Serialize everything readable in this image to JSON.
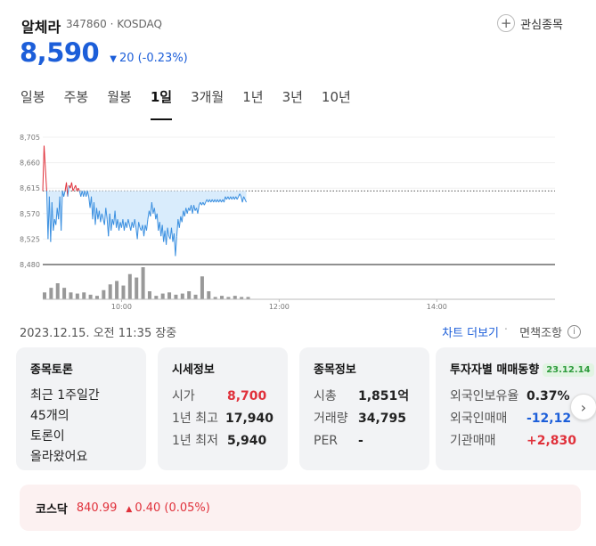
{
  "header": {
    "name": "알체라",
    "code_market": "347860 · KOSDAQ",
    "watch_label": "관심종목",
    "plus_icon": "+"
  },
  "quote": {
    "price": "8,590",
    "change_icon": "▼",
    "change": "20 (-0.23%)"
  },
  "tabs": [
    {
      "label": "일봉"
    },
    {
      "label": "주봉"
    },
    {
      "label": "월봉"
    },
    {
      "label": "1일",
      "active": true
    },
    {
      "label": "3개월"
    },
    {
      "label": "1년"
    },
    {
      "label": "3년"
    },
    {
      "label": "10년"
    }
  ],
  "chart_data": {
    "type": "line",
    "y_ticks": [
      "8,705",
      "8,660",
      "8,615",
      "8,570",
      "8,525",
      "8,480"
    ],
    "x_ticks": [
      "10:00",
      "12:00",
      "14:00"
    ],
    "ylim": [
      8480,
      8705
    ],
    "reference_price": 8610,
    "colors": {
      "up": "#e0313b",
      "down": "#3a8fe0",
      "fill": "#d9ecfc",
      "volume": "#999999"
    },
    "price_series": [
      {
        "t": "09:00",
        "v": 8610
      },
      {
        "t": "09:01",
        "v": 8690
      },
      {
        "t": "09:02",
        "v": 8650
      },
      {
        "t": "09:03",
        "v": 8610
      },
      {
        "t": "09:04",
        "v": 8525
      },
      {
        "t": "09:05",
        "v": 8600
      },
      {
        "t": "09:06",
        "v": 8520
      },
      {
        "t": "09:07",
        "v": 8590
      },
      {
        "t": "09:08",
        "v": 8540
      },
      {
        "t": "09:09",
        "v": 8560
      },
      {
        "t": "09:10",
        "v": 8550
      },
      {
        "t": "09:11",
        "v": 8580
      },
      {
        "t": "09:12",
        "v": 8560
      },
      {
        "t": "09:13",
        "v": 8600
      },
      {
        "t": "09:14",
        "v": 8540
      },
      {
        "t": "09:15",
        "v": 8610
      },
      {
        "t": "09:16",
        "v": 8600
      },
      {
        "t": "09:17",
        "v": 8610
      },
      {
        "t": "09:18",
        "v": 8625
      },
      {
        "t": "09:19",
        "v": 8600
      },
      {
        "t": "09:20",
        "v": 8620
      },
      {
        "t": "09:21",
        "v": 8615
      },
      {
        "t": "09:22",
        "v": 8625
      },
      {
        "t": "09:23",
        "v": 8610
      },
      {
        "t": "09:24",
        "v": 8615
      },
      {
        "t": "09:25",
        "v": 8620
      },
      {
        "t": "09:26",
        "v": 8610
      },
      {
        "t": "09:27",
        "v": 8615
      },
      {
        "t": "09:28",
        "v": 8610
      },
      {
        "t": "09:29",
        "v": 8600
      },
      {
        "t": "09:30",
        "v": 8610
      },
      {
        "t": "09:31",
        "v": 8600
      },
      {
        "t": "09:32",
        "v": 8610
      },
      {
        "t": "09:33",
        "v": 8600
      },
      {
        "t": "09:34",
        "v": 8610
      },
      {
        "t": "09:35",
        "v": 8600
      },
      {
        "t": "09:36",
        "v": 8580
      },
      {
        "t": "09:37",
        "v": 8600
      },
      {
        "t": "09:38",
        "v": 8560
      },
      {
        "t": "09:39",
        "v": 8590
      },
      {
        "t": "09:40",
        "v": 8550
      },
      {
        "t": "09:41",
        "v": 8580
      },
      {
        "t": "09:42",
        "v": 8560
      },
      {
        "t": "09:43",
        "v": 8575
      },
      {
        "t": "09:44",
        "v": 8555
      },
      {
        "t": "09:45",
        "v": 8570
      },
      {
        "t": "09:46",
        "v": 8560
      },
      {
        "t": "09:47",
        "v": 8550
      },
      {
        "t": "09:48",
        "v": 8580
      },
      {
        "t": "09:49",
        "v": 8560
      },
      {
        "t": "09:50",
        "v": 8530
      },
      {
        "t": "09:51",
        "v": 8570
      },
      {
        "t": "09:52",
        "v": 8540
      },
      {
        "t": "09:53",
        "v": 8560
      },
      {
        "t": "09:54",
        "v": 8550
      },
      {
        "t": "09:55",
        "v": 8575
      },
      {
        "t": "09:56",
        "v": 8545
      },
      {
        "t": "09:57",
        "v": 8560
      },
      {
        "t": "09:58",
        "v": 8540
      },
      {
        "t": "09:59",
        "v": 8555
      },
      {
        "t": "10:00",
        "v": 8545
      },
      {
        "t": "10:01",
        "v": 8560
      },
      {
        "t": "10:02",
        "v": 8540
      },
      {
        "t": "10:03",
        "v": 8555
      },
      {
        "t": "10:04",
        "v": 8545
      },
      {
        "t": "10:05",
        "v": 8560
      },
      {
        "t": "10:06",
        "v": 8550
      },
      {
        "t": "10:07",
        "v": 8540
      },
      {
        "t": "10:08",
        "v": 8555
      },
      {
        "t": "10:09",
        "v": 8545
      },
      {
        "t": "10:10",
        "v": 8560
      },
      {
        "t": "10:11",
        "v": 8545
      },
      {
        "t": "10:12",
        "v": 8525
      },
      {
        "t": "10:13",
        "v": 8555
      },
      {
        "t": "10:14",
        "v": 8545
      },
      {
        "t": "10:15",
        "v": 8540
      },
      {
        "t": "10:16",
        "v": 8550
      },
      {
        "t": "10:17",
        "v": 8530
      },
      {
        "t": "10:18",
        "v": 8550
      },
      {
        "t": "10:19",
        "v": 8540
      },
      {
        "t": "10:20",
        "v": 8560
      },
      {
        "t": "10:21",
        "v": 8575
      },
      {
        "t": "10:22",
        "v": 8565
      },
      {
        "t": "10:23",
        "v": 8590
      },
      {
        "t": "10:24",
        "v": 8570
      },
      {
        "t": "10:25",
        "v": 8580
      },
      {
        "t": "10:26",
        "v": 8560
      },
      {
        "t": "10:27",
        "v": 8570
      },
      {
        "t": "10:28",
        "v": 8540
      },
      {
        "t": "10:29",
        "v": 8555
      },
      {
        "t": "10:30",
        "v": 8530
      },
      {
        "t": "10:31",
        "v": 8550
      },
      {
        "t": "10:32",
        "v": 8520
      },
      {
        "t": "10:33",
        "v": 8540
      },
      {
        "t": "10:34",
        "v": 8515
      },
      {
        "t": "10:35",
        "v": 8545
      },
      {
        "t": "10:36",
        "v": 8530
      },
      {
        "t": "10:37",
        "v": 8525
      },
      {
        "t": "10:38",
        "v": 8545
      },
      {
        "t": "10:39",
        "v": 8520
      },
      {
        "t": "10:40",
        "v": 8535
      },
      {
        "t": "10:41",
        "v": 8495
      },
      {
        "t": "10:42",
        "v": 8530
      },
      {
        "t": "10:43",
        "v": 8560
      },
      {
        "t": "10:44",
        "v": 8545
      },
      {
        "t": "10:45",
        "v": 8565
      },
      {
        "t": "10:46",
        "v": 8555
      },
      {
        "t": "10:47",
        "v": 8575
      },
      {
        "t": "10:48",
        "v": 8565
      },
      {
        "t": "10:49",
        "v": 8580
      },
      {
        "t": "10:50",
        "v": 8570
      },
      {
        "t": "10:51",
        "v": 8580
      },
      {
        "t": "10:52",
        "v": 8575
      },
      {
        "t": "10:53",
        "v": 8585
      },
      {
        "t": "10:54",
        "v": 8570
      },
      {
        "t": "10:55",
        "v": 8585
      },
      {
        "t": "10:56",
        "v": 8575
      },
      {
        "t": "10:57",
        "v": 8580
      },
      {
        "t": "10:58",
        "v": 8570
      },
      {
        "t": "10:59",
        "v": 8585
      },
      {
        "t": "11:00",
        "v": 8590
      },
      {
        "t": "11:01",
        "v": 8585
      },
      {
        "t": "11:02",
        "v": 8590
      },
      {
        "t": "11:03",
        "v": 8585
      },
      {
        "t": "11:04",
        "v": 8590
      },
      {
        "t": "11:05",
        "v": 8595
      },
      {
        "t": "11:06",
        "v": 8590
      },
      {
        "t": "11:07",
        "v": 8595
      },
      {
        "t": "11:08",
        "v": 8590
      },
      {
        "t": "11:09",
        "v": 8595
      },
      {
        "t": "11:10",
        "v": 8590
      },
      {
        "t": "11:11",
        "v": 8595
      },
      {
        "t": "11:12",
        "v": 8590
      },
      {
        "t": "11:13",
        "v": 8595
      },
      {
        "t": "11:14",
        "v": 8590
      },
      {
        "t": "11:15",
        "v": 8595
      },
      {
        "t": "11:16",
        "v": 8590
      },
      {
        "t": "11:17",
        "v": 8595
      },
      {
        "t": "11:18",
        "v": 8590
      },
      {
        "t": "11:19",
        "v": 8600
      },
      {
        "t": "11:20",
        "v": 8595
      },
      {
        "t": "11:21",
        "v": 8600
      },
      {
        "t": "11:22",
        "v": 8595
      },
      {
        "t": "11:23",
        "v": 8600
      },
      {
        "t": "11:24",
        "v": 8595
      },
      {
        "t": "11:25",
        "v": 8600
      },
      {
        "t": "11:26",
        "v": 8595
      },
      {
        "t": "11:27",
        "v": 8600
      },
      {
        "t": "11:28",
        "v": 8595
      },
      {
        "t": "11:29",
        "v": 8600
      },
      {
        "t": "11:30",
        "v": 8605
      },
      {
        "t": "11:31",
        "v": 8600
      },
      {
        "t": "11:32",
        "v": 8590
      },
      {
        "t": "11:33",
        "v": 8600
      },
      {
        "t": "11:34",
        "v": 8595
      },
      {
        "t": "11:35",
        "v": 8590
      }
    ],
    "volume_series": [
      {
        "t": "09:00",
        "v": 6
      },
      {
        "t": "09:05",
        "v": 10
      },
      {
        "t": "09:10",
        "v": 14
      },
      {
        "t": "09:15",
        "v": 10
      },
      {
        "t": "09:20",
        "v": 6
      },
      {
        "t": "09:25",
        "v": 5
      },
      {
        "t": "09:30",
        "v": 6
      },
      {
        "t": "09:35",
        "v": 4
      },
      {
        "t": "09:40",
        "v": 3
      },
      {
        "t": "09:45",
        "v": 8
      },
      {
        "t": "09:50",
        "v": 13
      },
      {
        "t": "09:55",
        "v": 16
      },
      {
        "t": "10:00",
        "v": 12
      },
      {
        "t": "10:05",
        "v": 22
      },
      {
        "t": "10:10",
        "v": 19
      },
      {
        "t": "10:15",
        "v": 28
      },
      {
        "t": "10:20",
        "v": 7
      },
      {
        "t": "10:25",
        "v": 3
      },
      {
        "t": "10:30",
        "v": 5
      },
      {
        "t": "10:35",
        "v": 6
      },
      {
        "t": "10:40",
        "v": 4
      },
      {
        "t": "10:45",
        "v": 5
      },
      {
        "t": "10:50",
        "v": 7
      },
      {
        "t": "10:55",
        "v": 4
      },
      {
        "t": "11:00",
        "v": 20
      },
      {
        "t": "11:05",
        "v": 7
      },
      {
        "t": "11:10",
        "v": 2
      },
      {
        "t": "11:15",
        "v": 3
      },
      {
        "t": "11:20",
        "v": 2
      },
      {
        "t": "11:25",
        "v": 3
      },
      {
        "t": "11:30",
        "v": 2
      },
      {
        "t": "11:35",
        "v": 2
      }
    ]
  },
  "meta": {
    "timestamp": "2023.12.15. 오전 11:35 장중",
    "more_chart": "차트 더보기",
    "separator": "·",
    "disclaimer": "면책조항",
    "info_icon": "i"
  },
  "cards": {
    "discussion": {
      "title": "종목토론",
      "lines": [
        "최근 1주일간",
        "45개의",
        "토론이",
        "올라왔어요"
      ]
    },
    "quote_info": {
      "title": "시세정보",
      "rows": [
        {
          "k": "시가",
          "v": "8,700"
        },
        {
          "k": "1년 최고",
          "v": "17,940"
        },
        {
          "k": "1년 최저",
          "v": "5,940"
        }
      ]
    },
    "stock_info": {
      "title": "종목정보",
      "rows": [
        {
          "k": "시총",
          "v": "1,851억"
        },
        {
          "k": "거래량",
          "v": "34,795"
        },
        {
          "k": "PER",
          "v": "-"
        }
      ]
    },
    "investor": {
      "title": "투자자별 매매동향",
      "date": "23.12.14",
      "rows": [
        {
          "k": "외국인보유율",
          "v": "0.37%"
        },
        {
          "k": "외국인매매",
          "v": "-12,12"
        },
        {
          "k": "기관매매",
          "v": "+2,830"
        }
      ]
    },
    "next_icon": "›"
  },
  "index": {
    "name": "코스닥",
    "value": "840.99",
    "change_icon": "▲",
    "change": "0.40 (0.05%)"
  }
}
